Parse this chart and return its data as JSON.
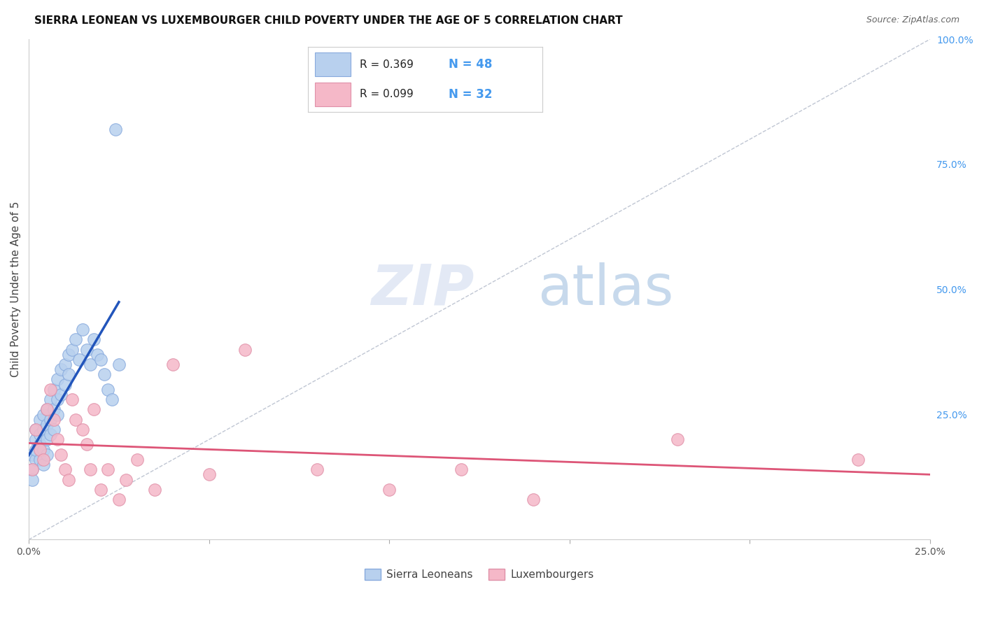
{
  "title": "SIERRA LEONEAN VS LUXEMBOURGER CHILD POVERTY UNDER THE AGE OF 5 CORRELATION CHART",
  "source": "Source: ZipAtlas.com",
  "ylabel": "Child Poverty Under the Age of 5",
  "xlim": [
    0.0,
    0.25
  ],
  "ylim": [
    0.0,
    1.0
  ],
  "x_ticks": [
    0.0,
    0.05,
    0.1,
    0.15,
    0.2,
    0.25
  ],
  "x_tick_labels": [
    "0.0%",
    "",
    "",
    "",
    "",
    "25.0%"
  ],
  "y_ticks_right": [
    0.0,
    0.25,
    0.5,
    0.75,
    1.0
  ],
  "y_tick_labels_right": [
    "",
    "25.0%",
    "50.0%",
    "75.0%",
    "100.0%"
  ],
  "grid_color": "#d8d8e8",
  "background_color": "#ffffff",
  "sierra_r": "0.369",
  "sierra_n": "48",
  "luxembourger_r": "0.099",
  "luxembourger_n": "32",
  "sierra_color": "#b8d0ee",
  "sierra_edge": "#88aadd",
  "luxembourger_color": "#f5b8c8",
  "luxembourger_edge": "#e090a8",
  "sierra_line_color": "#2255bb",
  "luxembourger_line_color": "#dd5577",
  "diagonal_color": "#b0b8c8",
  "legend_labels": [
    "Sierra Leoneans",
    "Luxembourgers"
  ],
  "sierra_x": [
    0.001,
    0.001,
    0.001,
    0.002,
    0.002,
    0.002,
    0.002,
    0.003,
    0.003,
    0.003,
    0.003,
    0.004,
    0.004,
    0.004,
    0.004,
    0.005,
    0.005,
    0.005,
    0.005,
    0.006,
    0.006,
    0.006,
    0.007,
    0.007,
    0.007,
    0.008,
    0.008,
    0.008,
    0.009,
    0.009,
    0.01,
    0.01,
    0.011,
    0.011,
    0.012,
    0.013,
    0.014,
    0.015,
    0.016,
    0.017,
    0.018,
    0.019,
    0.02,
    0.021,
    0.022,
    0.023,
    0.024,
    0.025
  ],
  "sierra_y": [
    0.14,
    0.17,
    0.12,
    0.2,
    0.22,
    0.16,
    0.18,
    0.24,
    0.19,
    0.16,
    0.21,
    0.25,
    0.22,
    0.18,
    0.15,
    0.26,
    0.23,
    0.2,
    0.17,
    0.28,
    0.24,
    0.21,
    0.3,
    0.26,
    0.22,
    0.32,
    0.28,
    0.25,
    0.34,
    0.29,
    0.35,
    0.31,
    0.37,
    0.33,
    0.38,
    0.4,
    0.36,
    0.42,
    0.38,
    0.35,
    0.4,
    0.37,
    0.36,
    0.33,
    0.3,
    0.28,
    0.82,
    0.35
  ],
  "luxembourger_x": [
    0.001,
    0.002,
    0.003,
    0.004,
    0.005,
    0.006,
    0.007,
    0.008,
    0.009,
    0.01,
    0.011,
    0.012,
    0.013,
    0.015,
    0.016,
    0.017,
    0.018,
    0.02,
    0.022,
    0.025,
    0.027,
    0.03,
    0.035,
    0.04,
    0.05,
    0.06,
    0.08,
    0.1,
    0.12,
    0.14,
    0.18,
    0.23
  ],
  "luxembourger_y": [
    0.14,
    0.22,
    0.18,
    0.16,
    0.26,
    0.3,
    0.24,
    0.2,
    0.17,
    0.14,
    0.12,
    0.28,
    0.24,
    0.22,
    0.19,
    0.14,
    0.26,
    0.1,
    0.14,
    0.08,
    0.12,
    0.16,
    0.1,
    0.35,
    0.13,
    0.38,
    0.14,
    0.1,
    0.14,
    0.08,
    0.2,
    0.16
  ]
}
